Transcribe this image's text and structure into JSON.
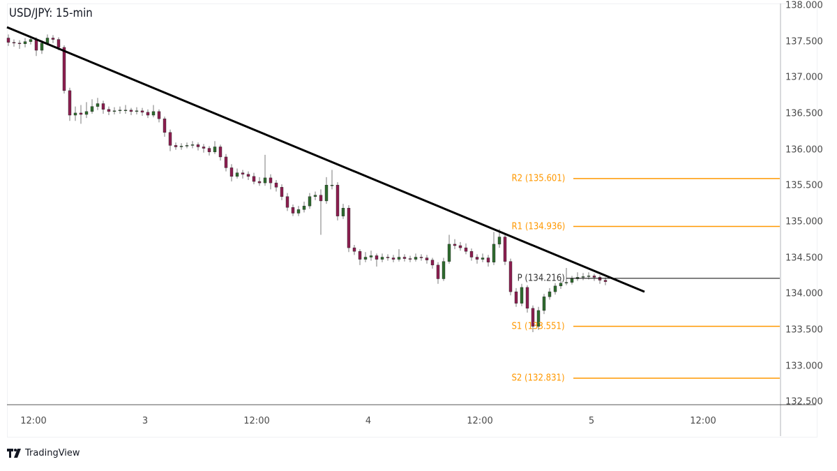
{
  "chart_data": {
    "type": "candlestick",
    "title": "USD/JPY: 15-min",
    "ylim": [
      132.5,
      138.0
    ],
    "y_ticks": [
      "138.000",
      "137.500",
      "137.000",
      "136.500",
      "136.000",
      "135.500",
      "135.000",
      "134.500",
      "134.000",
      "133.500",
      "133.000",
      "132.500"
    ],
    "x_ticks": [
      "12:00",
      "3",
      "12:00",
      "4",
      "12:00",
      "5",
      "12:00"
    ],
    "colors": {
      "up": "#2e6b2e",
      "down": "#8b1e4f",
      "wick": "#7a7a7a",
      "trendline": "#000000",
      "pivot": "#000000",
      "sr": "#ff9800"
    },
    "candles": [
      [
        137.55,
        137.6,
        137.44,
        137.49
      ],
      [
        137.49,
        137.53,
        137.43,
        137.48
      ],
      [
        137.48,
        137.52,
        137.4,
        137.47
      ],
      [
        137.47,
        137.55,
        137.42,
        137.5
      ],
      [
        137.5,
        137.58,
        137.46,
        137.53
      ],
      [
        137.53,
        137.56,
        137.3,
        137.38
      ],
      [
        137.38,
        137.52,
        137.33,
        137.48
      ],
      [
        137.48,
        137.6,
        137.45,
        137.55
      ],
      [
        137.55,
        137.59,
        137.48,
        137.53
      ],
      [
        137.53,
        137.56,
        137.38,
        137.42
      ],
      [
        137.42,
        137.45,
        136.78,
        136.82
      ],
      [
        136.82,
        136.86,
        136.4,
        136.48
      ],
      [
        136.48,
        136.6,
        136.4,
        136.51
      ],
      [
        136.51,
        136.62,
        136.36,
        136.49
      ],
      [
        136.49,
        136.66,
        136.44,
        136.53
      ],
      [
        136.53,
        136.7,
        136.5,
        136.6
      ],
      [
        136.6,
        136.72,
        136.55,
        136.64
      ],
      [
        136.64,
        136.68,
        136.5,
        136.56
      ],
      [
        136.56,
        136.6,
        136.48,
        136.53
      ],
      [
        136.53,
        136.59,
        136.49,
        136.54
      ],
      [
        136.54,
        136.6,
        136.5,
        136.55
      ],
      [
        136.55,
        136.62,
        136.5,
        136.55
      ],
      [
        136.55,
        136.58,
        136.48,
        136.53
      ],
      [
        136.53,
        136.59,
        136.49,
        136.54
      ],
      [
        136.54,
        136.58,
        136.47,
        136.52
      ],
      [
        136.52,
        136.56,
        136.44,
        136.48
      ],
      [
        136.48,
        136.62,
        136.45,
        136.53
      ],
      [
        136.53,
        136.56,
        136.38,
        136.43
      ],
      [
        136.43,
        136.46,
        136.18,
        136.24
      ],
      [
        136.24,
        136.28,
        135.98,
        136.06
      ],
      [
        136.06,
        136.1,
        136.0,
        136.04
      ],
      [
        136.04,
        136.09,
        136.0,
        136.05
      ],
      [
        136.05,
        136.1,
        136.02,
        136.06
      ],
      [
        136.06,
        136.12,
        136.02,
        136.07
      ],
      [
        136.07,
        136.1,
        135.99,
        136.04
      ],
      [
        136.04,
        136.08,
        135.96,
        136.02
      ],
      [
        136.02,
        136.05,
        135.92,
        135.97
      ],
      [
        135.97,
        136.12,
        135.94,
        136.04
      ],
      [
        136.04,
        136.07,
        135.85,
        135.9
      ],
      [
        135.9,
        135.94,
        135.7,
        135.75
      ],
      [
        135.75,
        135.8,
        135.56,
        135.63
      ],
      [
        135.63,
        135.74,
        135.6,
        135.68
      ],
      [
        135.68,
        135.72,
        135.6,
        135.66
      ],
      [
        135.66,
        135.7,
        135.58,
        135.63
      ],
      [
        135.63,
        135.68,
        135.52,
        135.56
      ],
      [
        135.56,
        135.62,
        135.5,
        135.54
      ],
      [
        135.54,
        135.93,
        135.5,
        135.61
      ],
      [
        135.61,
        135.66,
        135.45,
        135.54
      ],
      [
        135.54,
        135.58,
        135.42,
        135.48
      ],
      [
        135.48,
        135.52,
        135.3,
        135.35
      ],
      [
        135.35,
        135.4,
        135.15,
        135.2
      ],
      [
        135.2,
        135.24,
        135.08,
        135.12
      ],
      [
        135.12,
        135.22,
        135.08,
        135.17
      ],
      [
        135.17,
        135.28,
        135.13,
        135.22
      ],
      [
        135.22,
        135.4,
        135.18,
        135.35
      ],
      [
        135.35,
        135.42,
        135.3,
        135.37
      ],
      [
        135.37,
        135.45,
        134.82,
        135.29
      ],
      [
        135.29,
        135.62,
        135.25,
        135.51
      ],
      [
        135.51,
        135.72,
        135.45,
        135.51
      ],
      [
        135.51,
        135.55,
        135.02,
        135.08
      ],
      [
        135.08,
        135.25,
        135.04,
        135.19
      ],
      [
        135.19,
        135.23,
        134.58,
        134.64
      ],
      [
        134.64,
        134.68,
        134.54,
        134.59
      ],
      [
        134.59,
        134.62,
        134.4,
        134.48
      ],
      [
        134.48,
        134.58,
        134.44,
        134.51
      ],
      [
        134.51,
        134.6,
        134.46,
        134.53
      ],
      [
        134.53,
        134.56,
        134.38,
        134.48
      ],
      [
        134.48,
        134.56,
        134.44,
        134.51
      ],
      [
        134.51,
        134.55,
        134.46,
        134.5
      ],
      [
        134.5,
        134.54,
        134.44,
        134.48
      ],
      [
        134.48,
        134.62,
        134.45,
        134.51
      ],
      [
        134.51,
        134.55,
        134.45,
        134.49
      ],
      [
        134.49,
        134.53,
        134.44,
        134.48
      ],
      [
        134.48,
        134.56,
        134.45,
        134.51
      ],
      [
        134.51,
        134.55,
        134.46,
        134.5
      ],
      [
        134.5,
        134.54,
        134.42,
        134.47
      ],
      [
        134.47,
        134.5,
        134.35,
        134.4
      ],
      [
        134.4,
        134.44,
        134.14,
        134.21
      ],
      [
        134.21,
        134.5,
        134.18,
        134.45
      ],
      [
        134.45,
        134.82,
        134.42,
        134.69
      ],
      [
        134.69,
        134.76,
        134.62,
        134.67
      ],
      [
        134.67,
        134.72,
        134.6,
        134.64
      ],
      [
        134.64,
        134.7,
        134.55,
        134.59
      ],
      [
        134.59,
        134.63,
        134.46,
        134.51
      ],
      [
        134.51,
        134.55,
        134.42,
        134.48
      ],
      [
        134.48,
        134.56,
        134.44,
        134.5
      ],
      [
        134.5,
        134.54,
        134.38,
        134.44
      ],
      [
        134.44,
        134.86,
        134.4,
        134.69
      ],
      [
        134.69,
        134.9,
        134.64,
        134.79
      ],
      [
        134.79,
        134.84,
        134.4,
        134.45
      ],
      [
        134.45,
        134.49,
        133.98,
        134.03
      ],
      [
        134.03,
        134.08,
        133.82,
        133.87
      ],
      [
        133.87,
        134.14,
        133.83,
        134.09
      ],
      [
        134.09,
        134.12,
        133.74,
        133.8
      ],
      [
        133.8,
        133.84,
        133.47,
        133.55
      ],
      [
        133.55,
        133.82,
        133.5,
        133.77
      ],
      [
        133.77,
        134.0,
        133.72,
        133.96
      ],
      [
        133.96,
        134.08,
        133.92,
        134.03
      ],
      [
        134.03,
        134.15,
        133.99,
        134.11
      ],
      [
        134.11,
        134.19,
        134.07,
        134.15
      ],
      [
        134.15,
        134.36,
        134.12,
        134.16
      ],
      [
        134.16,
        134.25,
        134.13,
        134.21
      ],
      [
        134.21,
        134.3,
        134.18,
        134.23
      ],
      [
        134.23,
        134.29,
        134.19,
        134.24
      ],
      [
        134.24,
        134.3,
        134.2,
        134.25
      ],
      [
        134.25,
        134.28,
        134.18,
        134.23
      ],
      [
        134.23,
        134.26,
        134.14,
        134.19
      ],
      [
        134.19,
        134.23,
        134.12,
        134.17
      ]
    ],
    "trendline": {
      "start": {
        "bar": 0,
        "price": 137.7
      },
      "end": {
        "bar": 114,
        "price": 134.03
      }
    },
    "pivots": [
      {
        "name": "R2",
        "label": "R2 (135.601)",
        "price": 135.601
      },
      {
        "name": "R1",
        "label": "R1 (134.936)",
        "price": 134.936
      },
      {
        "name": "P",
        "label": "P (134.216)",
        "price": 134.216
      },
      {
        "name": "S1",
        "label": "S1 (133.551)",
        "price": 133.551
      },
      {
        "name": "S2",
        "label": "S2 (132.831)",
        "price": 132.831
      }
    ]
  },
  "branding": {
    "logo_text": "TradingView"
  }
}
